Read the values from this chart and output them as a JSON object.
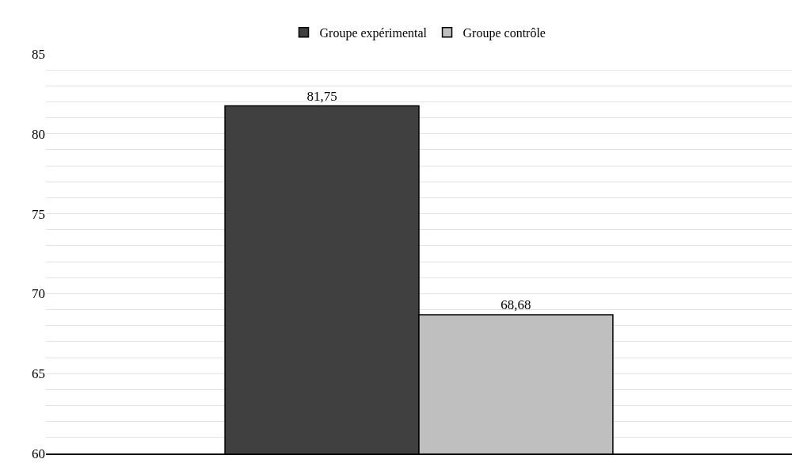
{
  "chart_data": {
    "type": "bar",
    "categories": [
      null
    ],
    "series": [
      {
        "name": "Groupe expérimental",
        "color": "#404040",
        "values": [
          81.75
        ],
        "value_labels": [
          "81,75"
        ]
      },
      {
        "name": "Groupe contrôle",
        "color": "#bfbfbf",
        "values": [
          68.68
        ],
        "value_labels": [
          "68,68"
        ]
      }
    ],
    "ylim": [
      60,
      85
    ],
    "yticks": [
      60,
      {
        "value": 61,
        "label": null
      },
      {
        "value": 62,
        "label": null
      },
      {
        "value": 63,
        "label": null
      },
      {
        "value": 64,
        "label": null
      },
      65,
      {
        "value": 66,
        "label": null
      },
      {
        "value": 67,
        "label": null
      },
      {
        "value": 68,
        "label": null
      },
      {
        "value": 69,
        "label": null
      },
      70,
      {
        "value": 71,
        "label": null
      },
      {
        "value": 72,
        "label": null
      },
      {
        "value": 73,
        "label": null
      },
      {
        "value": 74,
        "label": null
      },
      75,
      {
        "value": 76,
        "label": null
      },
      {
        "value": 77,
        "label": null
      },
      {
        "value": 78,
        "label": null
      },
      {
        "value": 79,
        "label": null
      },
      80,
      {
        "value": 81,
        "label": null
      },
      {
        "value": 82,
        "label": null
      },
      {
        "value": 83,
        "label": null
      },
      {
        "value": 84,
        "label": null
      },
      85
    ],
    "grid": "y",
    "legend": "top"
  }
}
